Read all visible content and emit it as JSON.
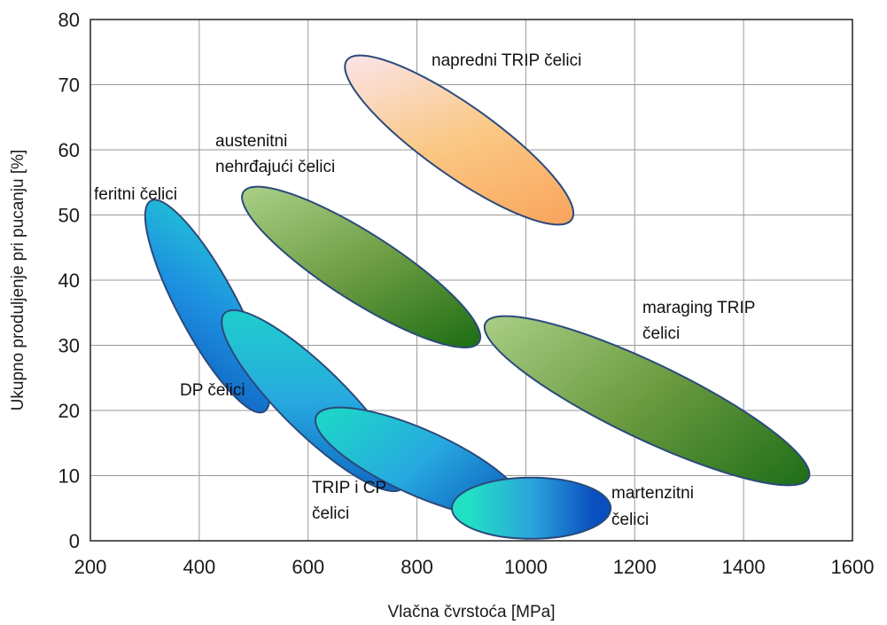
{
  "chart_data": {
    "type": "scatter",
    "title": "",
    "xlabel": "Vlačna čvrstoća [MPa]",
    "ylabel": "Ukupno produljenje pri pucanju [%]",
    "xlim": [
      200,
      1600
    ],
    "ylim": [
      0,
      80
    ],
    "x_ticks": [
      "200",
      "400",
      "600",
      "800",
      "1000",
      "1200",
      "1400",
      "1600"
    ],
    "y_ticks": [
      "0",
      "10",
      "20",
      "30",
      "40",
      "50",
      "60",
      "70",
      "80"
    ],
    "grid": true,
    "regions": [
      {
        "id": "feritni",
        "label": [
          "feritni čelici"
        ],
        "from": [
          325,
          50
        ],
        "to": [
          505,
          22
        ],
        "half_width": 4.5,
        "colors": [
          "#22d6d4",
          "#1e8fe0",
          "#0b57b8"
        ]
      },
      {
        "id": "austenitni",
        "label": [
          "austenitni",
          "nehrđajući čelici"
        ],
        "from": [
          510,
          52
        ],
        "to": [
          885,
          32
        ],
        "half_width": 5.2,
        "colors": [
          "#a9cf86",
          "#6e9d44",
          "#1e6e14"
        ]
      },
      {
        "id": "napredni",
        "label": [
          "napredni TRIP čelici"
        ],
        "from": [
          700,
          72
        ],
        "to": [
          1055,
          51
        ],
        "half_width": 5.4,
        "colors": [
          "#fbe4ea",
          "#fac884",
          "#f9a45c"
        ]
      },
      {
        "id": "dp",
        "label": [
          "DP čelici"
        ],
        "from": [
          470,
          33
        ],
        "to": [
          750,
          10
        ],
        "half_width": 5.0,
        "colors": [
          "#1ed4c8",
          "#27a9e0",
          "#0d5dbd"
        ]
      },
      {
        "id": "maraging",
        "label": [
          "maraging TRIP",
          "čelici"
        ],
        "from": [
          960,
          32
        ],
        "to": [
          1485,
          11
        ],
        "half_width": 5.8,
        "colors": [
          "#a6cb82",
          "#6a9a3f",
          "#22701a"
        ]
      },
      {
        "id": "trip_cp",
        "label": [
          "TRIP i CP",
          "čelici"
        ],
        "from": [
          645,
          18
        ],
        "to": [
          965,
          6
        ],
        "half_width": 5.0,
        "colors": [
          "#1ed4c8",
          "#27a9e0",
          "#0d5dbd"
        ]
      },
      {
        "id": "martenzitni",
        "label": [
          "martenzitni",
          "čelici"
        ],
        "from": [
          895,
          5
        ],
        "to": [
          1125,
          5
        ],
        "half_width": 4.7,
        "colors": [
          "#22e0c4",
          "#2aa5dc",
          "#0a4fc0"
        ]
      }
    ]
  }
}
